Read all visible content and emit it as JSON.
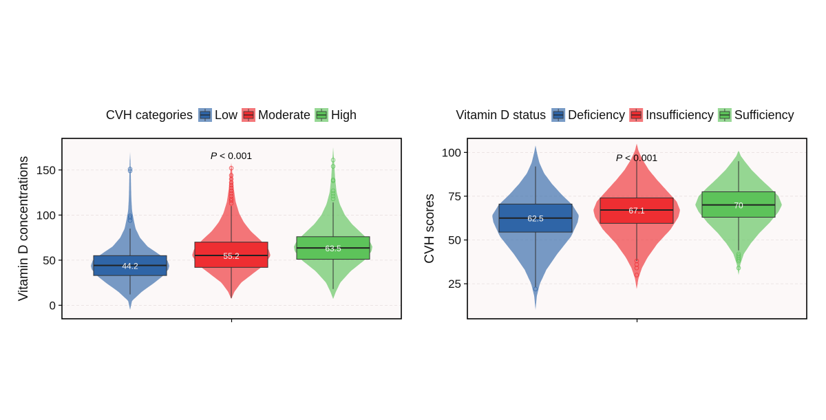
{
  "chart_data": [
    {
      "type": "violin-box",
      "legend_title": "CVH categories",
      "legend_position": "top",
      "xlabel": "",
      "ylabel": "Vitamin D concentrations",
      "ylim": [
        -15,
        185
      ],
      "yticks": [
        0,
        50,
        100,
        150
      ],
      "ytick_labels": [
        "0",
        "50",
        "100",
        "150"
      ],
      "grid": true,
      "annotation_prefix": "P",
      "annotation_suffix": "< 0.001",
      "annotation_at": [
        2,
        162
      ],
      "groups": [
        {
          "name": "Low",
          "color": "#2F65A7",
          "stats": {
            "q1": 33,
            "median": 44.2,
            "q3": 55,
            "whisker_low": 12,
            "whisker_high": 85
          },
          "median_label": "44.2",
          "range": [
            -5,
            170
          ],
          "profile": [
            [
              -5,
              0
            ],
            [
              5,
              0.05
            ],
            [
              15,
              0.3
            ],
            [
              25,
              0.62
            ],
            [
              33,
              0.85
            ],
            [
              40,
              0.98
            ],
            [
              44,
              1.0
            ],
            [
              50,
              0.95
            ],
            [
              57,
              0.72
            ],
            [
              65,
              0.45
            ],
            [
              75,
              0.25
            ],
            [
              85,
              0.14
            ],
            [
              95,
              0.09
            ],
            [
              105,
              0.05
            ],
            [
              120,
              0.03
            ],
            [
              140,
              0.02
            ],
            [
              160,
              0.01
            ],
            [
              170,
              0
            ]
          ],
          "outliers": [
            94,
            97,
            99,
            149,
            151
          ]
        },
        {
          "name": "Moderate",
          "color": "#EE2E32",
          "stats": {
            "q1": 42,
            "median": 55.2,
            "q3": 70,
            "whisker_low": 8,
            "whisker_high": 110
          },
          "median_label": "55.2",
          "range": [
            7,
            158
          ],
          "profile": [
            [
              7,
              0
            ],
            [
              15,
              0.08
            ],
            [
              25,
              0.25
            ],
            [
              35,
              0.55
            ],
            [
              45,
              0.85
            ],
            [
              55,
              1.0
            ],
            [
              62,
              0.95
            ],
            [
              72,
              0.75
            ],
            [
              82,
              0.5
            ],
            [
              92,
              0.32
            ],
            [
              102,
              0.2
            ],
            [
              115,
              0.11
            ],
            [
              130,
              0.06
            ],
            [
              145,
              0.03
            ],
            [
              158,
              0
            ]
          ],
          "outliers": [
            113,
            116,
            118,
            121,
            124,
            127,
            130,
            133,
            136,
            140,
            144,
            152
          ]
        },
        {
          "name": "High",
          "color": "#5DC35A",
          "stats": {
            "q1": 51,
            "median": 63.5,
            "q3": 76,
            "whisker_low": 18,
            "whisker_high": 114
          },
          "median_label": "63.5",
          "range": [
            7,
            175
          ],
          "profile": [
            [
              7,
              0
            ],
            [
              15,
              0.07
            ],
            [
              25,
              0.18
            ],
            [
              38,
              0.45
            ],
            [
              50,
              0.8
            ],
            [
              60,
              0.98
            ],
            [
              65,
              1.0
            ],
            [
              72,
              0.92
            ],
            [
              80,
              0.72
            ],
            [
              90,
              0.48
            ],
            [
              100,
              0.3
            ],
            [
              112,
              0.17
            ],
            [
              125,
              0.09
            ],
            [
              140,
              0.05
            ],
            [
              155,
              0.03
            ],
            [
              175,
              0
            ]
          ],
          "outliers": [
            118,
            121,
            124,
            127,
            138,
            139,
            154,
            161
          ]
        }
      ]
    },
    {
      "type": "violin-box",
      "legend_title": "Vitamin D status",
      "legend_position": "top",
      "xlabel": "",
      "ylabel": "CVH scores",
      "ylim": [
        5,
        108
      ],
      "yticks": [
        25,
        50,
        75,
        100
      ],
      "ytick_labels": [
        "25",
        "50",
        "75",
        "100"
      ],
      "grid": true,
      "annotation_prefix": "P",
      "annotation_suffix": "< 0.001",
      "annotation_at": [
        2,
        95
      ],
      "groups": [
        {
          "name": "Deficiency",
          "color": "#2F65A7",
          "stats": {
            "q1": 54.5,
            "median": 62.5,
            "q3": 70.5,
            "whisker_low": 23,
            "whisker_high": 92
          },
          "median_label": "62.5",
          "range": [
            10,
            104
          ],
          "profile": [
            [
              10,
              0
            ],
            [
              18,
              0.03
            ],
            [
              25,
              0.1
            ],
            [
              33,
              0.25
            ],
            [
              42,
              0.5
            ],
            [
              52,
              0.82
            ],
            [
              60,
              0.97
            ],
            [
              64,
              1.0
            ],
            [
              70,
              0.85
            ],
            [
              76,
              0.6
            ],
            [
              82,
              0.38
            ],
            [
              88,
              0.2
            ],
            [
              94,
              0.09
            ],
            [
              100,
              0.03
            ],
            [
              104,
              0
            ]
          ],
          "outliers": [
            22
          ]
        },
        {
          "name": "Insufficiency",
          "color": "#EE2E32",
          "stats": {
            "q1": 59.5,
            "median": 67.1,
            "q3": 74,
            "whisker_low": 38,
            "whisker_high": 95
          },
          "median_label": "67.1",
          "range": [
            22,
            105
          ],
          "profile": [
            [
              22,
              0
            ],
            [
              28,
              0.04
            ],
            [
              34,
              0.12
            ],
            [
              40,
              0.25
            ],
            [
              48,
              0.48
            ],
            [
              56,
              0.78
            ],
            [
              63,
              0.96
            ],
            [
              67,
              1.0
            ],
            [
              72,
              0.92
            ],
            [
              78,
              0.7
            ],
            [
              84,
              0.48
            ],
            [
              90,
              0.28
            ],
            [
              96,
              0.13
            ],
            [
              101,
              0.04
            ],
            [
              105,
              0
            ]
          ],
          "outliers": [
            30,
            34,
            36,
            38
          ]
        },
        {
          "name": "Sufficiency",
          "color": "#5DC35A",
          "stats": {
            "q1": 63,
            "median": 70,
            "q3": 77.5,
            "whisker_low": 44,
            "whisker_high": 95
          },
          "median_label": "70",
          "range": [
            30,
            101
          ],
          "profile": [
            [
              30,
              0
            ],
            [
              36,
              0.04
            ],
            [
              42,
              0.12
            ],
            [
              48,
              0.28
            ],
            [
              54,
              0.48
            ],
            [
              60,
              0.72
            ],
            [
              66,
              0.92
            ],
            [
              70,
              1.0
            ],
            [
              75,
              0.92
            ],
            [
              80,
              0.72
            ],
            [
              85,
              0.5
            ],
            [
              90,
              0.3
            ],
            [
              95,
              0.14
            ],
            [
              98,
              0.05
            ],
            [
              101,
              0
            ]
          ],
          "outliers": [
            34,
            38,
            39,
            40,
            41,
            42
          ]
        }
      ]
    }
  ]
}
